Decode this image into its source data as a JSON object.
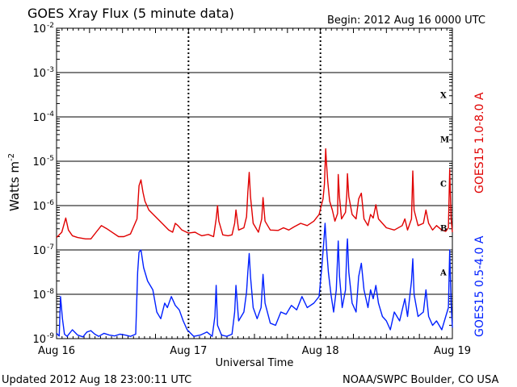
{
  "header": {
    "title": "GOES Xray Flux (5 minute data)",
    "begin_label": "Begin:  2012 Aug 16 0000 UTC"
  },
  "footer": {
    "updated": "Updated 2012 Aug 18 23:00:11 UTC",
    "credit": "NOAA/SWPC Boulder, CO USA"
  },
  "chart_data": {
    "type": "line",
    "title": "GOES Xray Flux (5 minute data)",
    "xlabel": "Universal Time",
    "ylabel": "Watts m",
    "ylabel_exponent": "-2",
    "y_scale": "log",
    "ylim": [
      1e-09,
      0.01
    ],
    "xlim_days": [
      0,
      3
    ],
    "x_ticks": [
      {
        "day": 0,
        "label": "Aug 16"
      },
      {
        "day": 1,
        "label": "Aug 17"
      },
      {
        "day": 2,
        "label": "Aug 18"
      },
      {
        "day": 3,
        "label": "Aug 19"
      }
    ],
    "y_ticks": [
      {
        "exp": -9,
        "label": "10"
      },
      {
        "exp": -8,
        "label": "10"
      },
      {
        "exp": -7,
        "label": "10"
      },
      {
        "exp": -6,
        "label": "10"
      },
      {
        "exp": -5,
        "label": "10"
      },
      {
        "exp": -4,
        "label": "10"
      },
      {
        "exp": -3,
        "label": "10"
      },
      {
        "exp": -2,
        "label": "10"
      }
    ],
    "flare_classes": [
      {
        "label": "X",
        "exp": -3.5
      },
      {
        "label": "M",
        "exp": -4.5
      },
      {
        "label": "C",
        "exp": -5.5
      },
      {
        "label": "B",
        "exp": -6.5
      },
      {
        "label": "A",
        "exp": -7.5
      }
    ],
    "series": [
      {
        "name": "GOES15 1.0-8.0 A",
        "color": "#e00000",
        "points": [
          [
            0.0,
            -6.72
          ],
          [
            0.04,
            -6.6
          ],
          [
            0.07,
            -6.28
          ],
          [
            0.09,
            -6.55
          ],
          [
            0.12,
            -6.68
          ],
          [
            0.16,
            -6.72
          ],
          [
            0.22,
            -6.75
          ],
          [
            0.26,
            -6.75
          ],
          [
            0.3,
            -6.6
          ],
          [
            0.34,
            -6.45
          ],
          [
            0.38,
            -6.52
          ],
          [
            0.43,
            -6.62
          ],
          [
            0.47,
            -6.7
          ],
          [
            0.51,
            -6.7
          ],
          [
            0.56,
            -6.64
          ],
          [
            0.61,
            -6.3
          ],
          [
            0.625,
            -5.55
          ],
          [
            0.64,
            -5.42
          ],
          [
            0.655,
            -5.7
          ],
          [
            0.67,
            -5.9
          ],
          [
            0.7,
            -6.1
          ],
          [
            0.75,
            -6.25
          ],
          [
            0.8,
            -6.4
          ],
          [
            0.85,
            -6.55
          ],
          [
            0.88,
            -6.6
          ],
          [
            0.9,
            -6.4
          ],
          [
            0.92,
            -6.45
          ],
          [
            0.95,
            -6.55
          ],
          [
            1.0,
            -6.62
          ],
          [
            1.05,
            -6.6
          ],
          [
            1.08,
            -6.65
          ],
          [
            1.1,
            -6.68
          ],
          [
            1.15,
            -6.65
          ],
          [
            1.19,
            -6.7
          ],
          [
            1.21,
            -6.3
          ],
          [
            1.22,
            -6.0
          ],
          [
            1.23,
            -6.35
          ],
          [
            1.26,
            -6.66
          ],
          [
            1.3,
            -6.68
          ],
          [
            1.33,
            -6.66
          ],
          [
            1.35,
            -6.4
          ],
          [
            1.36,
            -6.1
          ],
          [
            1.38,
            -6.55
          ],
          [
            1.42,
            -6.5
          ],
          [
            1.44,
            -6.25
          ],
          [
            1.45,
            -5.7
          ],
          [
            1.46,
            -5.25
          ],
          [
            1.47,
            -5.8
          ],
          [
            1.49,
            -6.4
          ],
          [
            1.53,
            -6.6
          ],
          [
            1.555,
            -6.3
          ],
          [
            1.565,
            -5.82
          ],
          [
            1.58,
            -6.35
          ],
          [
            1.62,
            -6.55
          ],
          [
            1.68,
            -6.56
          ],
          [
            1.72,
            -6.5
          ],
          [
            1.76,
            -6.55
          ],
          [
            1.8,
            -6.48
          ],
          [
            1.85,
            -6.4
          ],
          [
            1.9,
            -6.45
          ],
          [
            1.95,
            -6.35
          ],
          [
            1.99,
            -6.2
          ],
          [
            2.02,
            -5.85
          ],
          [
            2.03,
            -5.52
          ],
          [
            2.035,
            -5.12
          ],
          [
            2.04,
            -4.72
          ],
          [
            2.045,
            -5.0
          ],
          [
            2.055,
            -5.45
          ],
          [
            2.07,
            -5.9
          ],
          [
            2.09,
            -6.1
          ],
          [
            2.11,
            -6.35
          ],
          [
            2.13,
            -6.18
          ],
          [
            2.135,
            -5.3
          ],
          [
            2.145,
            -5.82
          ],
          [
            2.16,
            -6.3
          ],
          [
            2.19,
            -6.15
          ],
          [
            2.2,
            -5.75
          ],
          [
            2.205,
            -5.28
          ],
          [
            2.215,
            -5.8
          ],
          [
            2.24,
            -6.2
          ],
          [
            2.27,
            -6.3
          ],
          [
            2.29,
            -5.85
          ],
          [
            2.31,
            -5.72
          ],
          [
            2.33,
            -6.3
          ],
          [
            2.36,
            -6.45
          ],
          [
            2.38,
            -6.2
          ],
          [
            2.4,
            -6.28
          ],
          [
            2.42,
            -5.98
          ],
          [
            2.44,
            -6.3
          ],
          [
            2.47,
            -6.4
          ],
          [
            2.5,
            -6.5
          ],
          [
            2.56,
            -6.55
          ],
          [
            2.62,
            -6.45
          ],
          [
            2.64,
            -6.3
          ],
          [
            2.66,
            -6.55
          ],
          [
            2.69,
            -6.3
          ],
          [
            2.7,
            -5.22
          ],
          [
            2.71,
            -6.1
          ],
          [
            2.74,
            -6.45
          ],
          [
            2.78,
            -6.4
          ],
          [
            2.8,
            -6.1
          ],
          [
            2.82,
            -6.4
          ],
          [
            2.85,
            -6.55
          ],
          [
            2.88,
            -6.45
          ],
          [
            2.92,
            -6.55
          ],
          [
            2.95,
            -6.58
          ],
          [
            2.97,
            -6.5
          ],
          [
            2.98,
            -5.18
          ],
          [
            2.99,
            -6.3
          ],
          [
            3.0,
            -6.6
          ]
        ]
      },
      {
        "name": "GOES15 0.5-4.0 A",
        "color": "#0020ff",
        "points": [
          [
            0.0,
            -8.88
          ],
          [
            0.02,
            -8.94
          ],
          [
            0.03,
            -8.05
          ],
          [
            0.045,
            -8.55
          ],
          [
            0.06,
            -8.9
          ],
          [
            0.08,
            -8.95
          ],
          [
            0.12,
            -8.8
          ],
          [
            0.16,
            -8.92
          ],
          [
            0.2,
            -8.96
          ],
          [
            0.23,
            -8.85
          ],
          [
            0.26,
            -8.82
          ],
          [
            0.29,
            -8.9
          ],
          [
            0.32,
            -8.95
          ],
          [
            0.36,
            -8.88
          ],
          [
            0.4,
            -8.92
          ],
          [
            0.44,
            -8.94
          ],
          [
            0.48,
            -8.9
          ],
          [
            0.52,
            -8.92
          ],
          [
            0.56,
            -8.95
          ],
          [
            0.6,
            -8.9
          ],
          [
            0.615,
            -7.5
          ],
          [
            0.625,
            -7.05
          ],
          [
            0.64,
            -7.0
          ],
          [
            0.66,
            -7.4
          ],
          [
            0.69,
            -7.7
          ],
          [
            0.73,
            -7.9
          ],
          [
            0.76,
            -8.4
          ],
          [
            0.79,
            -8.55
          ],
          [
            0.82,
            -8.2
          ],
          [
            0.84,
            -8.3
          ],
          [
            0.87,
            -8.05
          ],
          [
            0.9,
            -8.25
          ],
          [
            0.93,
            -8.35
          ],
          [
            0.96,
            -8.6
          ],
          [
            0.99,
            -8.8
          ],
          [
            1.04,
            -8.95
          ],
          [
            1.09,
            -8.92
          ],
          [
            1.14,
            -8.85
          ],
          [
            1.18,
            -8.95
          ],
          [
            1.2,
            -8.5
          ],
          [
            1.21,
            -7.8
          ],
          [
            1.22,
            -8.7
          ],
          [
            1.25,
            -8.92
          ],
          [
            1.29,
            -8.95
          ],
          [
            1.33,
            -8.9
          ],
          [
            1.35,
            -8.4
          ],
          [
            1.36,
            -7.8
          ],
          [
            1.38,
            -8.6
          ],
          [
            1.42,
            -8.4
          ],
          [
            1.44,
            -7.95
          ],
          [
            1.45,
            -7.5
          ],
          [
            1.46,
            -7.08
          ],
          [
            1.47,
            -7.6
          ],
          [
            1.49,
            -8.3
          ],
          [
            1.52,
            -8.55
          ],
          [
            1.55,
            -8.3
          ],
          [
            1.565,
            -7.55
          ],
          [
            1.58,
            -8.2
          ],
          [
            1.62,
            -8.65
          ],
          [
            1.66,
            -8.7
          ],
          [
            1.7,
            -8.4
          ],
          [
            1.74,
            -8.45
          ],
          [
            1.78,
            -8.25
          ],
          [
            1.82,
            -8.35
          ],
          [
            1.86,
            -8.05
          ],
          [
            1.9,
            -8.3
          ],
          [
            1.95,
            -8.2
          ],
          [
            1.99,
            -8.05
          ],
          [
            2.01,
            -7.4
          ],
          [
            2.025,
            -6.85
          ],
          [
            2.035,
            -6.4
          ],
          [
            2.045,
            -6.9
          ],
          [
            2.06,
            -7.5
          ],
          [
            2.08,
            -8.0
          ],
          [
            2.1,
            -8.4
          ],
          [
            2.12,
            -7.9
          ],
          [
            2.135,
            -6.8
          ],
          [
            2.145,
            -7.6
          ],
          [
            2.165,
            -8.3
          ],
          [
            2.19,
            -7.9
          ],
          [
            2.2,
            -7.0
          ],
          [
            2.205,
            -6.75
          ],
          [
            2.215,
            -7.5
          ],
          [
            2.24,
            -8.2
          ],
          [
            2.27,
            -8.4
          ],
          [
            2.29,
            -7.6
          ],
          [
            2.31,
            -7.3
          ],
          [
            2.33,
            -7.9
          ],
          [
            2.36,
            -8.3
          ],
          [
            2.38,
            -7.9
          ],
          [
            2.4,
            -8.1
          ],
          [
            2.42,
            -7.8
          ],
          [
            2.44,
            -8.2
          ],
          [
            2.47,
            -8.5
          ],
          [
            2.5,
            -8.6
          ],
          [
            2.53,
            -8.8
          ],
          [
            2.56,
            -8.4
          ],
          [
            2.6,
            -8.6
          ],
          [
            2.64,
            -8.1
          ],
          [
            2.66,
            -8.5
          ],
          [
            2.69,
            -7.7
          ],
          [
            2.7,
            -7.2
          ],
          [
            2.71,
            -8.0
          ],
          [
            2.74,
            -8.5
          ],
          [
            2.78,
            -8.4
          ],
          [
            2.8,
            -7.9
          ],
          [
            2.82,
            -8.5
          ],
          [
            2.85,
            -8.7
          ],
          [
            2.88,
            -8.6
          ],
          [
            2.92,
            -8.8
          ],
          [
            2.95,
            -8.5
          ],
          [
            2.97,
            -8.3
          ],
          [
            2.98,
            -7.0
          ],
          [
            2.99,
            -8.2
          ],
          [
            3.0,
            -8.75
          ]
        ]
      }
    ]
  }
}
